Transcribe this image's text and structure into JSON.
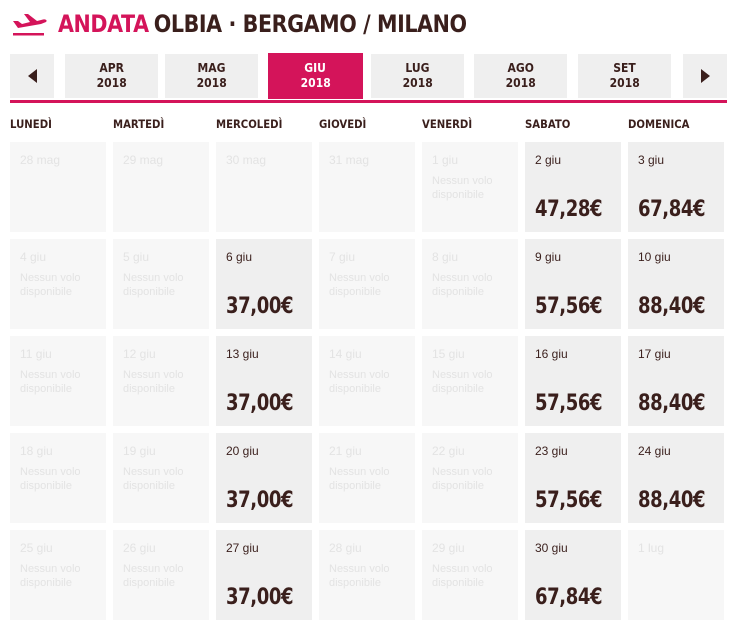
{
  "header": {
    "andata": "ANDATA",
    "route": "OLBIA · BERGAMO / MILANO"
  },
  "colors": {
    "accent": "#d4145a",
    "text": "#3a1f1c",
    "cell": "#efefef"
  },
  "icons": {
    "plane": "airplane-takeoff-icon",
    "prev": "chevron-left-icon",
    "next": "chevron-right-icon"
  },
  "months": [
    {
      "month": "APR",
      "year": "2018",
      "active": false
    },
    {
      "month": "MAG",
      "year": "2018",
      "active": false
    },
    {
      "month": "GIU",
      "year": "2018",
      "active": true
    },
    {
      "month": "LUG",
      "year": "2018",
      "active": false
    },
    {
      "month": "AGO",
      "year": "2018",
      "active": false
    },
    {
      "month": "SET",
      "year": "2018",
      "active": false
    }
  ],
  "weekdays": [
    "LUNEDÌ",
    "MARTEDÌ",
    "MERCOLEDÌ",
    "GIOVEDÌ",
    "VENERDÌ",
    "SABATO",
    "DOMENICA"
  ],
  "no_flight_text": "Nessun volo disponibile",
  "weeks": [
    [
      {
        "date": "28 mag",
        "price": null,
        "status": "out"
      },
      {
        "date": "29 mag",
        "price": null,
        "status": "out"
      },
      {
        "date": "30 mag",
        "price": null,
        "status": "out"
      },
      {
        "date": "31 mag",
        "price": null,
        "status": "out"
      },
      {
        "date": "1 giu",
        "price": null,
        "status": "none"
      },
      {
        "date": "2 giu",
        "price": "47,28€",
        "status": "avail"
      },
      {
        "date": "3 giu",
        "price": "67,84€",
        "status": "avail"
      }
    ],
    [
      {
        "date": "4 giu",
        "price": null,
        "status": "none"
      },
      {
        "date": "5 giu",
        "price": null,
        "status": "none"
      },
      {
        "date": "6 giu",
        "price": "37,00€",
        "status": "avail"
      },
      {
        "date": "7 giu",
        "price": null,
        "status": "none"
      },
      {
        "date": "8 giu",
        "price": null,
        "status": "none"
      },
      {
        "date": "9 giu",
        "price": "57,56€",
        "status": "avail"
      },
      {
        "date": "10 giu",
        "price": "88,40€",
        "status": "avail"
      }
    ],
    [
      {
        "date": "11 giu",
        "price": null,
        "status": "none"
      },
      {
        "date": "12 giu",
        "price": null,
        "status": "none"
      },
      {
        "date": "13 giu",
        "price": "37,00€",
        "status": "avail"
      },
      {
        "date": "14 giu",
        "price": null,
        "status": "none"
      },
      {
        "date": "15 giu",
        "price": null,
        "status": "none"
      },
      {
        "date": "16 giu",
        "price": "57,56€",
        "status": "avail"
      },
      {
        "date": "17 giu",
        "price": "88,40€",
        "status": "avail"
      }
    ],
    [
      {
        "date": "18 giu",
        "price": null,
        "status": "none"
      },
      {
        "date": "19 giu",
        "price": null,
        "status": "none"
      },
      {
        "date": "20 giu",
        "price": "37,00€",
        "status": "avail"
      },
      {
        "date": "21 giu",
        "price": null,
        "status": "none"
      },
      {
        "date": "22 giu",
        "price": null,
        "status": "none"
      },
      {
        "date": "23 giu",
        "price": "57,56€",
        "status": "avail"
      },
      {
        "date": "24 giu",
        "price": "88,40€",
        "status": "avail"
      }
    ],
    [
      {
        "date": "25 giu",
        "price": null,
        "status": "none"
      },
      {
        "date": "26 giu",
        "price": null,
        "status": "none"
      },
      {
        "date": "27 giu",
        "price": "37,00€",
        "status": "avail"
      },
      {
        "date": "28 giu",
        "price": null,
        "status": "none"
      },
      {
        "date": "29 giu",
        "price": null,
        "status": "none"
      },
      {
        "date": "30 giu",
        "price": "67,84€",
        "status": "avail"
      },
      {
        "date": "1 lug",
        "price": null,
        "status": "out"
      }
    ]
  ]
}
